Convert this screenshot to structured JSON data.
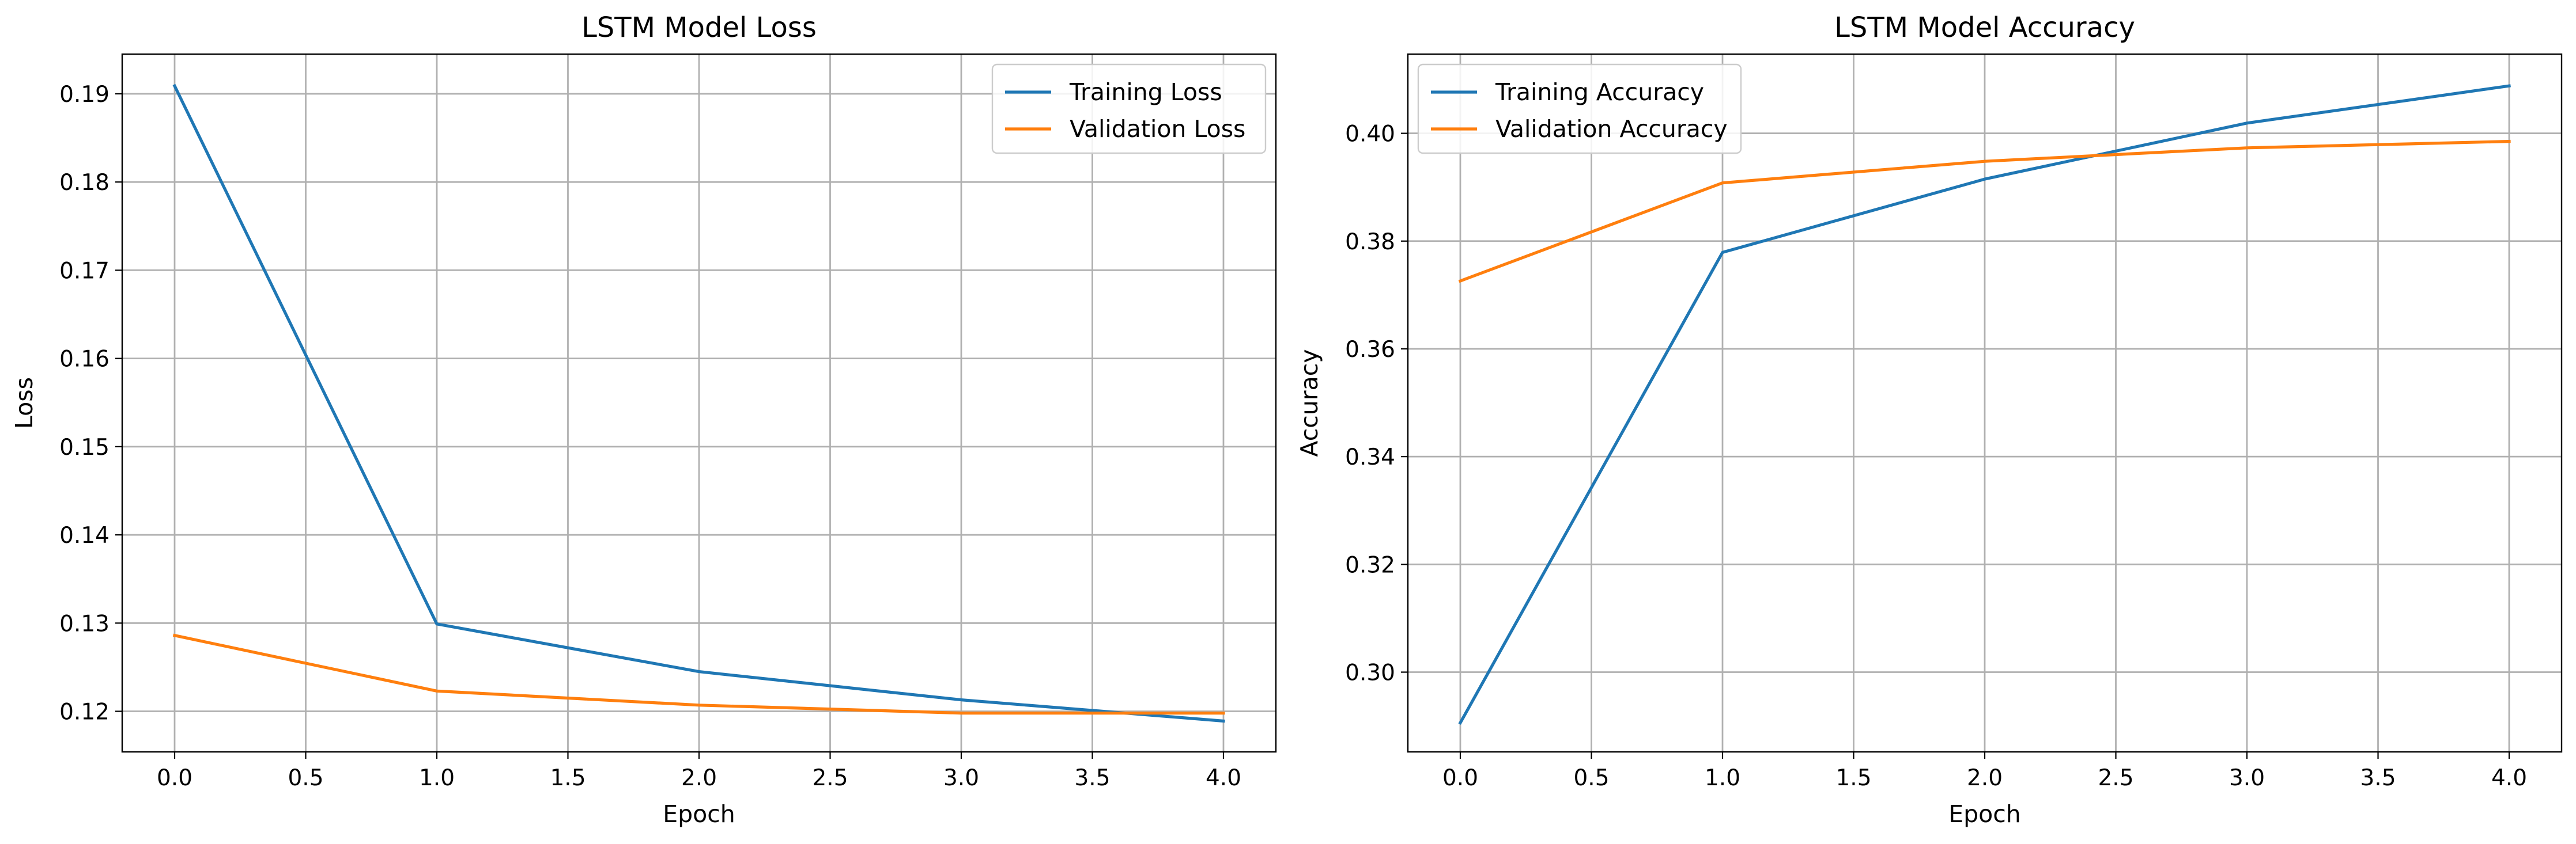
{
  "chart_data": [
    {
      "type": "line",
      "title": "LSTM Model Loss",
      "xlabel": "Epoch",
      "ylabel": "Loss",
      "x": [
        0,
        1,
        2,
        3,
        4
      ],
      "xlim": [
        -0.2,
        4.2
      ],
      "ylim": [
        0.1154,
        0.1945
      ],
      "xticks": [
        "0.0",
        "0.5",
        "1.0",
        "1.5",
        "2.0",
        "2.5",
        "3.0",
        "3.5",
        "4.0"
      ],
      "yticks": [
        "0.12",
        "0.13",
        "0.14",
        "0.15",
        "0.16",
        "0.17",
        "0.18",
        "0.19"
      ],
      "grid": true,
      "legend_position": "top-right",
      "series": [
        {
          "name": "Training Loss",
          "color": "#1f77b4",
          "values": [
            0.1909,
            0.1299,
            0.1245,
            0.1213,
            0.1189
          ]
        },
        {
          "name": "Validation Loss",
          "color": "#ff7f0e",
          "values": [
            0.1286,
            0.1223,
            0.1207,
            0.1198,
            0.1198
          ]
        }
      ]
    },
    {
      "type": "line",
      "title": "LSTM Model Accuracy",
      "xlabel": "Epoch",
      "ylabel": "Accuracy",
      "x": [
        0,
        1,
        2,
        3,
        4
      ],
      "xlim": [
        -0.2,
        4.2
      ],
      "ylim": [
        0.2852,
        0.4147
      ],
      "xticks": [
        "0.0",
        "0.5",
        "1.0",
        "1.5",
        "2.0",
        "2.5",
        "3.0",
        "3.5",
        "4.0"
      ],
      "yticks": [
        "0.30",
        "0.32",
        "0.34",
        "0.36",
        "0.38",
        "0.40"
      ],
      "grid": true,
      "legend_position": "top-left",
      "series": [
        {
          "name": "Training Accuracy",
          "color": "#1f77b4",
          "values": [
            0.2906,
            0.3779,
            0.3915,
            0.4019,
            0.4088
          ]
        },
        {
          "name": "Validation Accuracy",
          "color": "#ff7f0e",
          "values": [
            0.3726,
            0.3908,
            0.3948,
            0.3973,
            0.3985
          ]
        }
      ]
    }
  ]
}
